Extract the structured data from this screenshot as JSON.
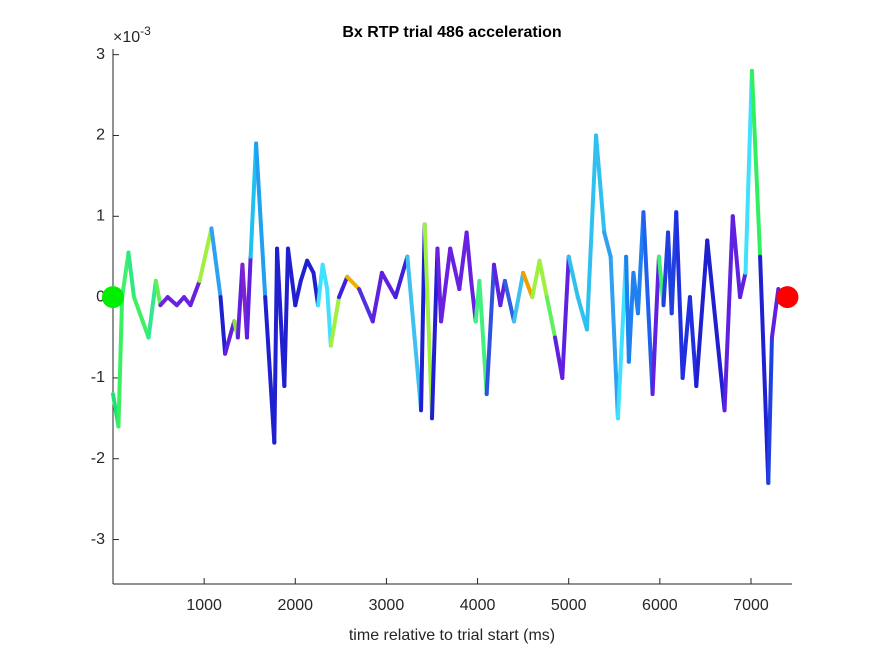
{
  "chart_data": {
    "type": "line",
    "title": "Bx  RTP trial 486 acceleration",
    "x_label": "time relative to trial start (ms)",
    "y_multiplier": "×10",
    "y_exponent": "-3",
    "xlim": [
      0,
      7450
    ],
    "ylim": [
      -3.55,
      3.07
    ],
    "xticks": [
      1000,
      2000,
      3000,
      4000,
      5000,
      6000,
      7000
    ],
    "yticks": [
      -3,
      -2,
      -1,
      0,
      1,
      2,
      3
    ],
    "line_width": 4,
    "x": [
      0,
      60,
      100,
      170,
      230,
      390,
      470,
      520,
      600,
      700,
      780,
      850,
      950,
      1080,
      1180,
      1230,
      1330,
      1370,
      1420,
      1470,
      1510,
      1570,
      1670,
      1770,
      1800,
      1880,
      1920,
      2000,
      2060,
      2130,
      2200,
      2250,
      2300,
      2350,
      2390,
      2480,
      2570,
      2700,
      2850,
      2950,
      3100,
      3230,
      3380,
      3420,
      3500,
      3560,
      3600,
      3700,
      3800,
      3880,
      3930,
      3980,
      4020,
      4100,
      4180,
      4250,
      4300,
      4400,
      4500,
      4600,
      4680,
      4760,
      4850,
      4930,
      5000,
      5100,
      5200,
      5300,
      5390,
      5460,
      5540,
      5630,
      5660,
      5710,
      5760,
      5820,
      5920,
      5990,
      6040,
      6090,
      6130,
      6180,
      6250,
      6330,
      6400,
      6520,
      6710,
      6800,
      6880,
      6940,
      7010,
      7100,
      7190,
      7230,
      7300
    ],
    "values": [
      -1.2,
      -1.6,
      0,
      0.55,
      0,
      -0.5,
      0.2,
      -0.1,
      0,
      -0.1,
      0,
      -0.1,
      0.2,
      0.85,
      0,
      -0.7,
      -0.3,
      -0.5,
      0.4,
      -0.5,
      0.5,
      1.9,
      0,
      -1.8,
      0.6,
      -1.1,
      0.6,
      -0.1,
      0.2,
      0.45,
      0.3,
      -0.1,
      0.4,
      0.1,
      -0.6,
      0,
      0.25,
      0.1,
      -0.3,
      0.3,
      0,
      0.5,
      -1.4,
      0.9,
      -1.5,
      0.6,
      -0.3,
      0.6,
      0.1,
      0.8,
      0.2,
      -0.3,
      0.2,
      -1.2,
      0.4,
      -0.1,
      0.2,
      -0.3,
      0.3,
      0,
      0.45,
      0,
      -0.5,
      -1,
      0.5,
      0,
      -0.4,
      2,
      0.8,
      0.5,
      -1.5,
      0.5,
      -0.8,
      0.3,
      -0.2,
      1.05,
      -1.2,
      0.5,
      -0.1,
      0.8,
      -0.2,
      1.05,
      -1,
      0,
      -1.1,
      0.7,
      -1.4,
      1,
      0,
      0.3,
      2.8,
      0.5,
      -2.3,
      -0.5,
      0.1
    ],
    "colors": [
      "#22e070",
      "#3af060",
      "#40f070",
      "#30e880",
      "#40f060",
      "#30e890",
      "#60f050",
      "#7020e0",
      "#6a20e0",
      "#6a20e0",
      "#6a20e0",
      "#6a20e0",
      "#a0f040",
      "#30a0f0",
      "#2020d0",
      "#6020e0",
      "#90e040",
      "#6020e0",
      "#8020d0",
      "#6020e0",
      "#20c0f0",
      "#20a0f0",
      "#2020d0",
      "#2020d0",
      "#2020d0",
      "#2020d0",
      "#2020d0",
      "#2020d0",
      "#2020d0",
      "#2020d0",
      "#2020d0",
      "#40e0ff",
      "#40e0ff",
      "#40e0ff",
      "#a0f040",
      "#4020e0",
      "#f0b000",
      "#5030e0",
      "#6020e0",
      "#6020e0",
      "#4020d8",
      "#40c0f0",
      "#2020d0",
      "#a0f040",
      "#2020d0",
      "#6a20e0",
      "#6a20e0",
      "#6a20e0",
      "#6a20e0",
      "#6a20e0",
      "#6a20e0",
      "#40f080",
      "#40f080",
      "#3050e0",
      "#6020e0",
      "#6020e0",
      "#3060e0",
      "#40c0f0",
      "#f0a000",
      "#a0f040",
      "#a0f040",
      "#60f060",
      "#6020e0",
      "#6020e0",
      "#30c0f0",
      "#30c0f0",
      "#30c0f0",
      "#30c0f0",
      "#30a0f0",
      "#30a0f0",
      "#40e0ff",
      "#2080f0",
      "#2080f0",
      "#2080f0",
      "#2080f0",
      "#2060f0",
      "#6020e0",
      "#40f070",
      "#2040e0",
      "#2040e0",
      "#2040e0",
      "#2030e0",
      "#2030e0",
      "#2030e0",
      "#2020d0",
      "#2020d0",
      "#6020e0",
      "#6020e0",
      "#6020e0",
      "#40e0ff",
      "#30f060",
      "#2020d0",
      "#2040e0",
      "#6020e0",
      "#6020e0"
    ],
    "start_marker": {
      "x": 0,
      "y": 0,
      "color": "#00ee00"
    },
    "end_marker": {
      "x": 7400,
      "y": 0,
      "color": "#ff0000"
    }
  }
}
